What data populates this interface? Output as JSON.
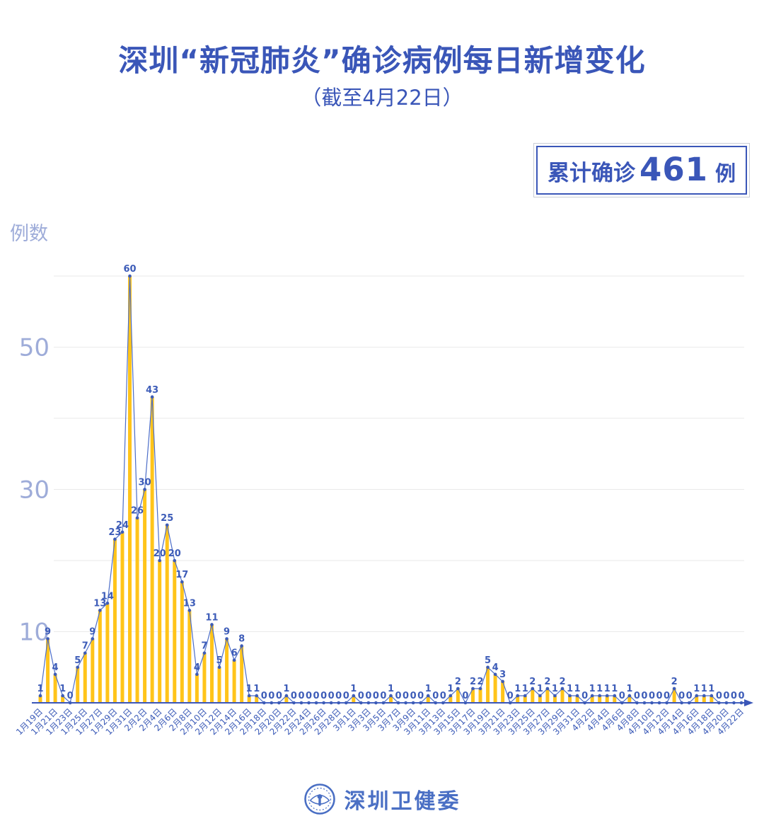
{
  "header": {
    "title": "深圳“新冠肺炎”确诊病例每日新增变化",
    "subtitle": "（截至4月22日）"
  },
  "badge": {
    "prefix": "累计确诊",
    "count": "461",
    "suffix": "例"
  },
  "footer": {
    "org_name": "深圳卫健委"
  },
  "chart_data": {
    "type": "bar",
    "overlay": "line-with-markers",
    "title": "深圳“新冠肺炎”确诊病例每日新增变化",
    "subtitle": "（截至4月22日）",
    "ylabel": "例数",
    "xlabel": "",
    "ylim": [
      0,
      62
    ],
    "grid": true,
    "grid_values": [
      10,
      20,
      30,
      40,
      50,
      60
    ],
    "ytick_values": [
      10,
      30,
      50
    ],
    "x_start": "1月19日",
    "x_end": "4月22日",
    "x_tick_labels": [
      "1月19日",
      "1月21日",
      "1月23日",
      "1月25日",
      "1月27日",
      "1月29日",
      "1月31日",
      "2月2日",
      "2月4日",
      "2月6日",
      "2月8日",
      "2月10日",
      "2月12日",
      "2月14日",
      "2月16日",
      "2月18日",
      "2月20日",
      "2月22日",
      "2月24日",
      "2月26日",
      "2月28日",
      "3月1日",
      "3月3日",
      "3月5日",
      "3月7日",
      "3月9日",
      "3月11日",
      "3月13日",
      "3月15日",
      "3月17日",
      "3月19日",
      "3月21日",
      "3月23日",
      "3月25日",
      "3月27日",
      "3月29日",
      "3月31日",
      "4月2日",
      "4月4日",
      "4月6日",
      "4月8日",
      "4月10日",
      "4月12日",
      "4月14日",
      "4月16日",
      "4月18日",
      "4月20日",
      "4月22日"
    ],
    "values": [
      1,
      9,
      4,
      1,
      0,
      5,
      7,
      9,
      13,
      14,
      23,
      24,
      60,
      26,
      30,
      43,
      20,
      25,
      20,
      17,
      13,
      4,
      7,
      11,
      5,
      9,
      6,
      8,
      1,
      1,
      0,
      0,
      0,
      1,
      0,
      0,
      0,
      0,
      0,
      0,
      0,
      0,
      1,
      0,
      0,
      0,
      0,
      1,
      0,
      0,
      0,
      0,
      1,
      0,
      0,
      1,
      2,
      0,
      2,
      2,
      5,
      4,
      3,
      0,
      1,
      1,
      2,
      1,
      2,
      1,
      2,
      1,
      1,
      0,
      1,
      1,
      1,
      1,
      0,
      1,
      0,
      0,
      0,
      0,
      0,
      2,
      0,
      0,
      1,
      1,
      1,
      0,
      0,
      0,
      0
    ],
    "total": 461,
    "colors": {
      "bar": "#ffc41a",
      "line": "#4d6ec8",
      "marker": "#3d5cb8",
      "value_label": "#3d5cb8",
      "x_label": "#3d5cb8",
      "axis": "#3a56b8",
      "grid": "#eaeaea",
      "ytick": "#9eacd9",
      "title": "#3a56b8"
    }
  }
}
